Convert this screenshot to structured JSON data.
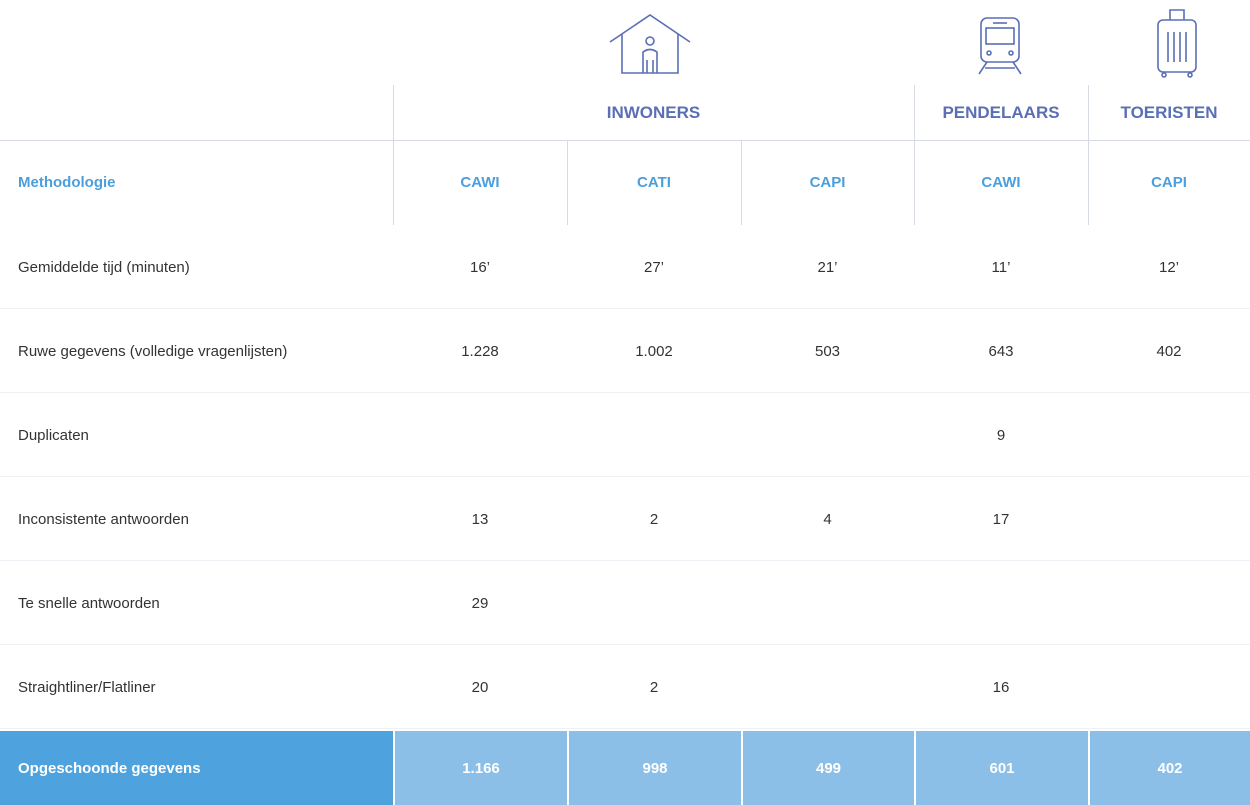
{
  "table": {
    "groups": [
      "INWONERS",
      "PENDELAARS",
      "TOERISTEN"
    ],
    "methodology": {
      "label": "Methodologie",
      "cells": [
        "CAWI",
        "CATI",
        "CAPI",
        "CAWI",
        "CAPI"
      ]
    },
    "rows": [
      {
        "label": "Gemiddelde tijd (minuten)",
        "cells": [
          "16’",
          "27’",
          "21’",
          "11’",
          "12’"
        ]
      },
      {
        "label": "Ruwe gegevens (volledige vragenlijsten)",
        "cells": [
          "1.228",
          "1.002",
          "503",
          "643",
          "402"
        ]
      },
      {
        "label": "Duplicaten",
        "cells": [
          null,
          null,
          null,
          "9",
          null
        ]
      },
      {
        "label": "Inconsistente antwoorden",
        "cells": [
          "13",
          "2",
          "4",
          "17",
          null
        ]
      },
      {
        "label": "Te snelle antwoorden",
        "cells": [
          "29",
          null,
          null,
          null,
          null
        ]
      },
      {
        "label": "Straightliner/Flatliner",
        "cells": [
          "20",
          "2",
          null,
          "16",
          null
        ]
      }
    ],
    "total": {
      "label": "Opgeschoonde gegevens",
      "cells": [
        "1.166",
        "998",
        "499",
        "601",
        "402"
      ]
    }
  }
}
